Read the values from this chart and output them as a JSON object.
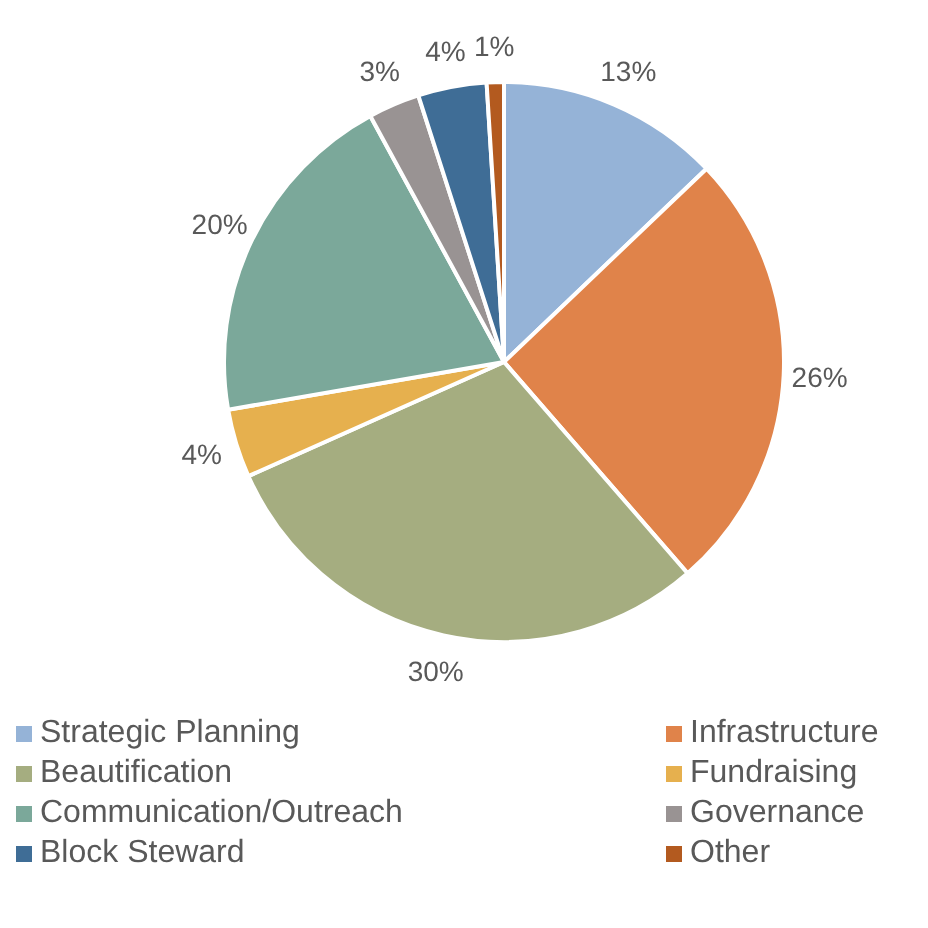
{
  "chart_data": {
    "type": "pie",
    "categories": [
      "Strategic Planning",
      "Infrastructure",
      "Beautification",
      "Fundraising",
      "Communication/Outreach",
      "Governance",
      "Block Steward",
      "Other"
    ],
    "values": [
      13,
      26,
      30,
      4,
      20,
      3,
      4,
      1
    ],
    "value_labels": [
      "13%",
      "26%",
      "30%",
      "4%",
      "20%",
      "3%",
      "4%",
      "1%"
    ],
    "colors": [
      "#95b3d7",
      "#e0834a",
      "#a5ad80",
      "#e6b04e",
      "#7ba89a",
      "#999393",
      "#3f6d96",
      "#b35a1f"
    ],
    "legend": "bottom"
  }
}
